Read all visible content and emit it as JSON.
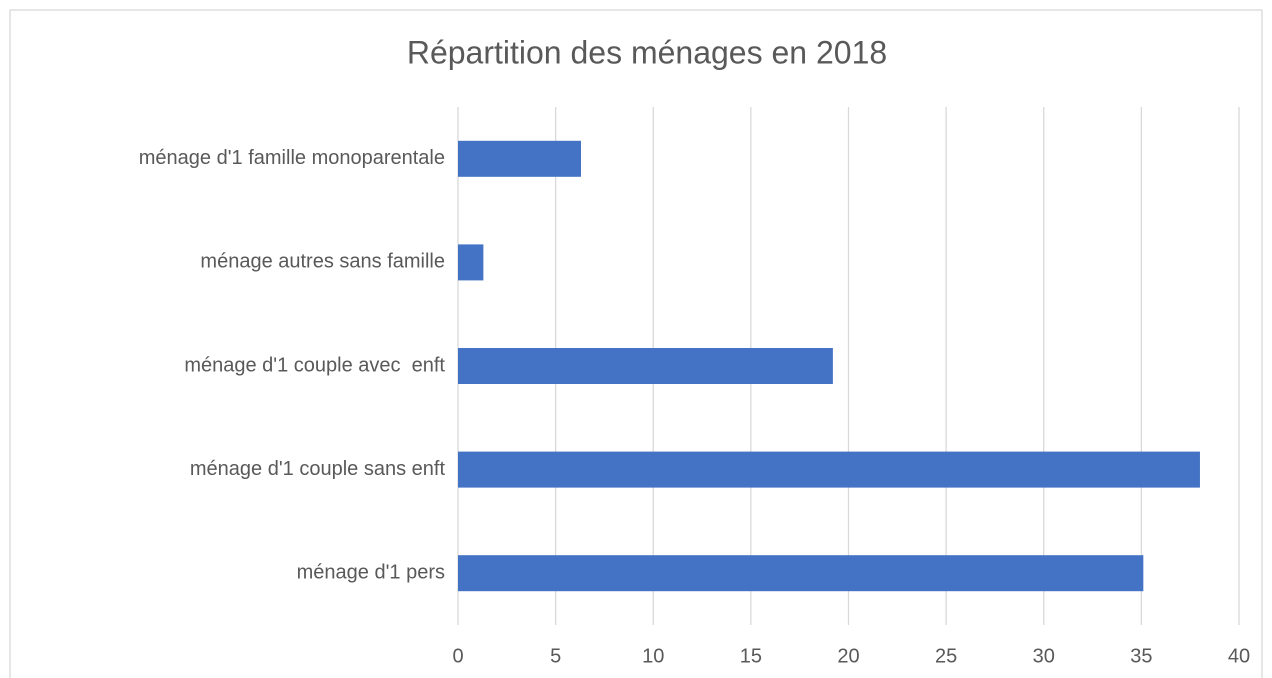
{
  "chart_data": {
    "type": "hbar",
    "title": "Répartition des ménages en 2018",
    "categories": [
      "ménage d'1 pers",
      "ménage d'1 couple sans enft",
      "ménage d'1 couple avec  enft",
      "ménage autres sans famille",
      "ménage d'1 famille monoparentale"
    ],
    "values": [
      35.1,
      38,
      19.2,
      1.3,
      6.3
    ],
    "color": "#4472c4",
    "xlim": [
      0,
      40
    ],
    "xticks": [
      0,
      5,
      10,
      15,
      20,
      25,
      30,
      35,
      40
    ],
    "grid": true
  }
}
